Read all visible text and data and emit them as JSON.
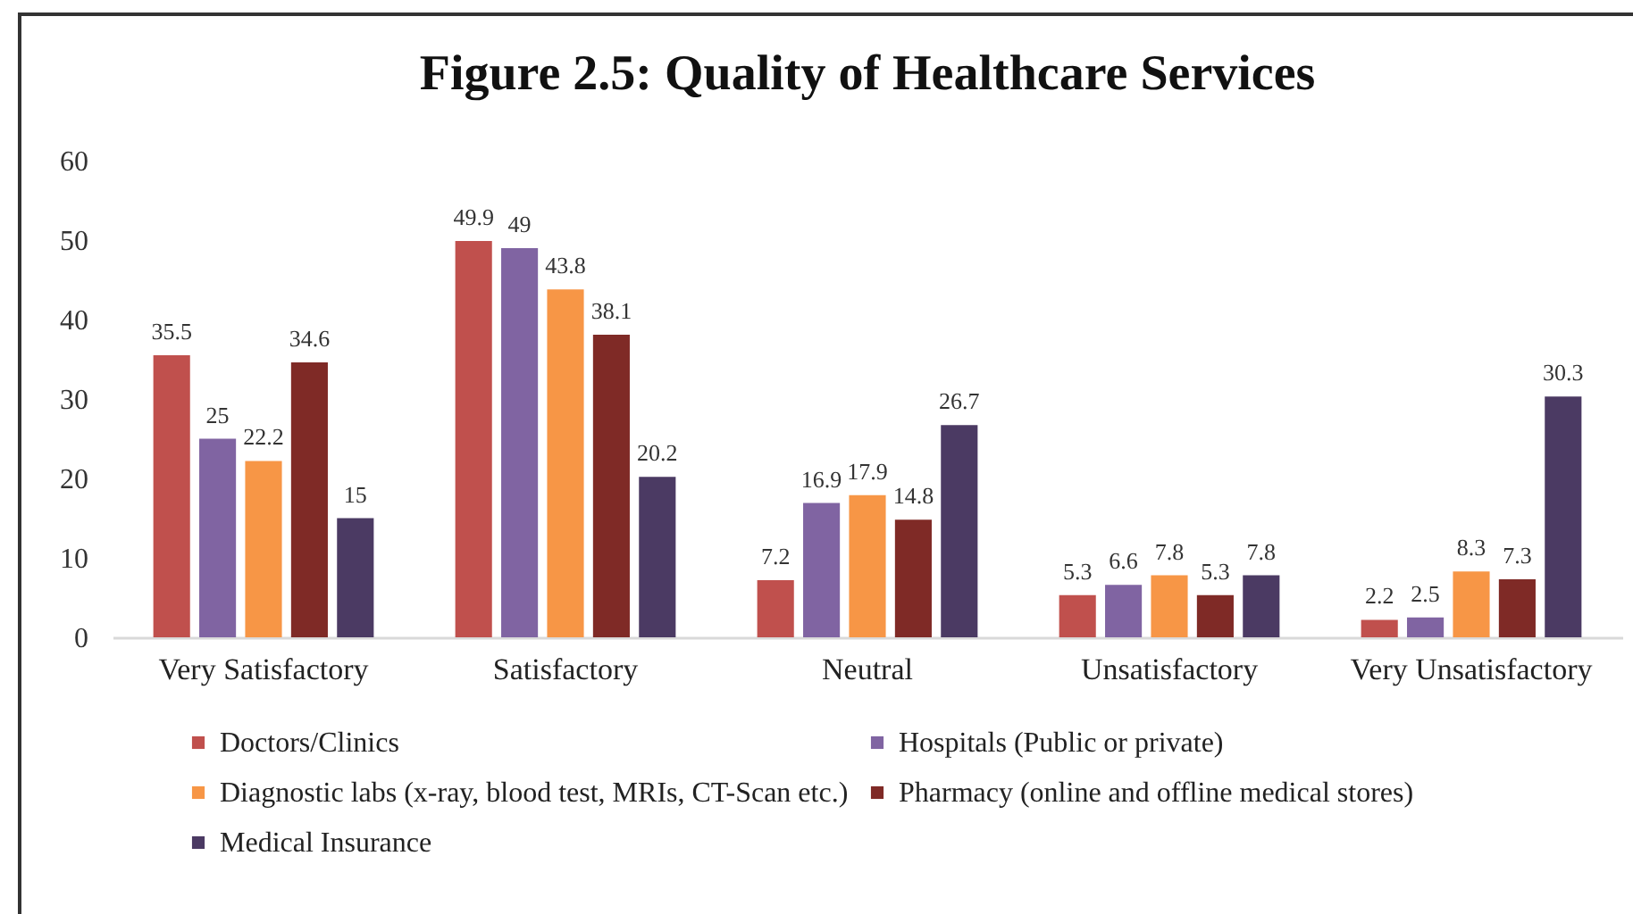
{
  "chart_data": {
    "type": "bar",
    "title": "Figure 2.5: Quality of Healthcare Services",
    "categories": [
      "Very Satisfactory",
      "Satisfactory",
      "Neutral",
      "Unsatisfactory",
      "Very Unsatisfactory"
    ],
    "series": [
      {
        "name": "Doctors/Clinics",
        "color": "#c0504d",
        "values": [
          35.5,
          49.9,
          7.2,
          5.3,
          2.2
        ]
      },
      {
        "name": "Hospitals (Public or private)",
        "color": "#8064a2",
        "values": [
          25,
          49,
          16.9,
          6.6,
          2.5
        ]
      },
      {
        "name": "Diagnostic labs (x-ray, blood test, MRIs, CT-Scan etc.)",
        "color": "#f79646",
        "values": [
          22.2,
          43.8,
          17.9,
          7.8,
          8.3
        ]
      },
      {
        "name": "Pharmacy (online and offline medical stores)",
        "color": "#7f2a26",
        "values": [
          34.6,
          38.1,
          14.8,
          5.3,
          7.3
        ]
      },
      {
        "name": "Medical Insurance",
        "color": "#4b3a63",
        "values": [
          15,
          20.2,
          26.7,
          7.8,
          30.3
        ]
      }
    ],
    "ylim": [
      0,
      60
    ],
    "yticks": [
      0,
      10,
      20,
      30,
      40,
      50,
      60
    ],
    "grid": false,
    "legend": "bottom",
    "data_labels": true
  }
}
